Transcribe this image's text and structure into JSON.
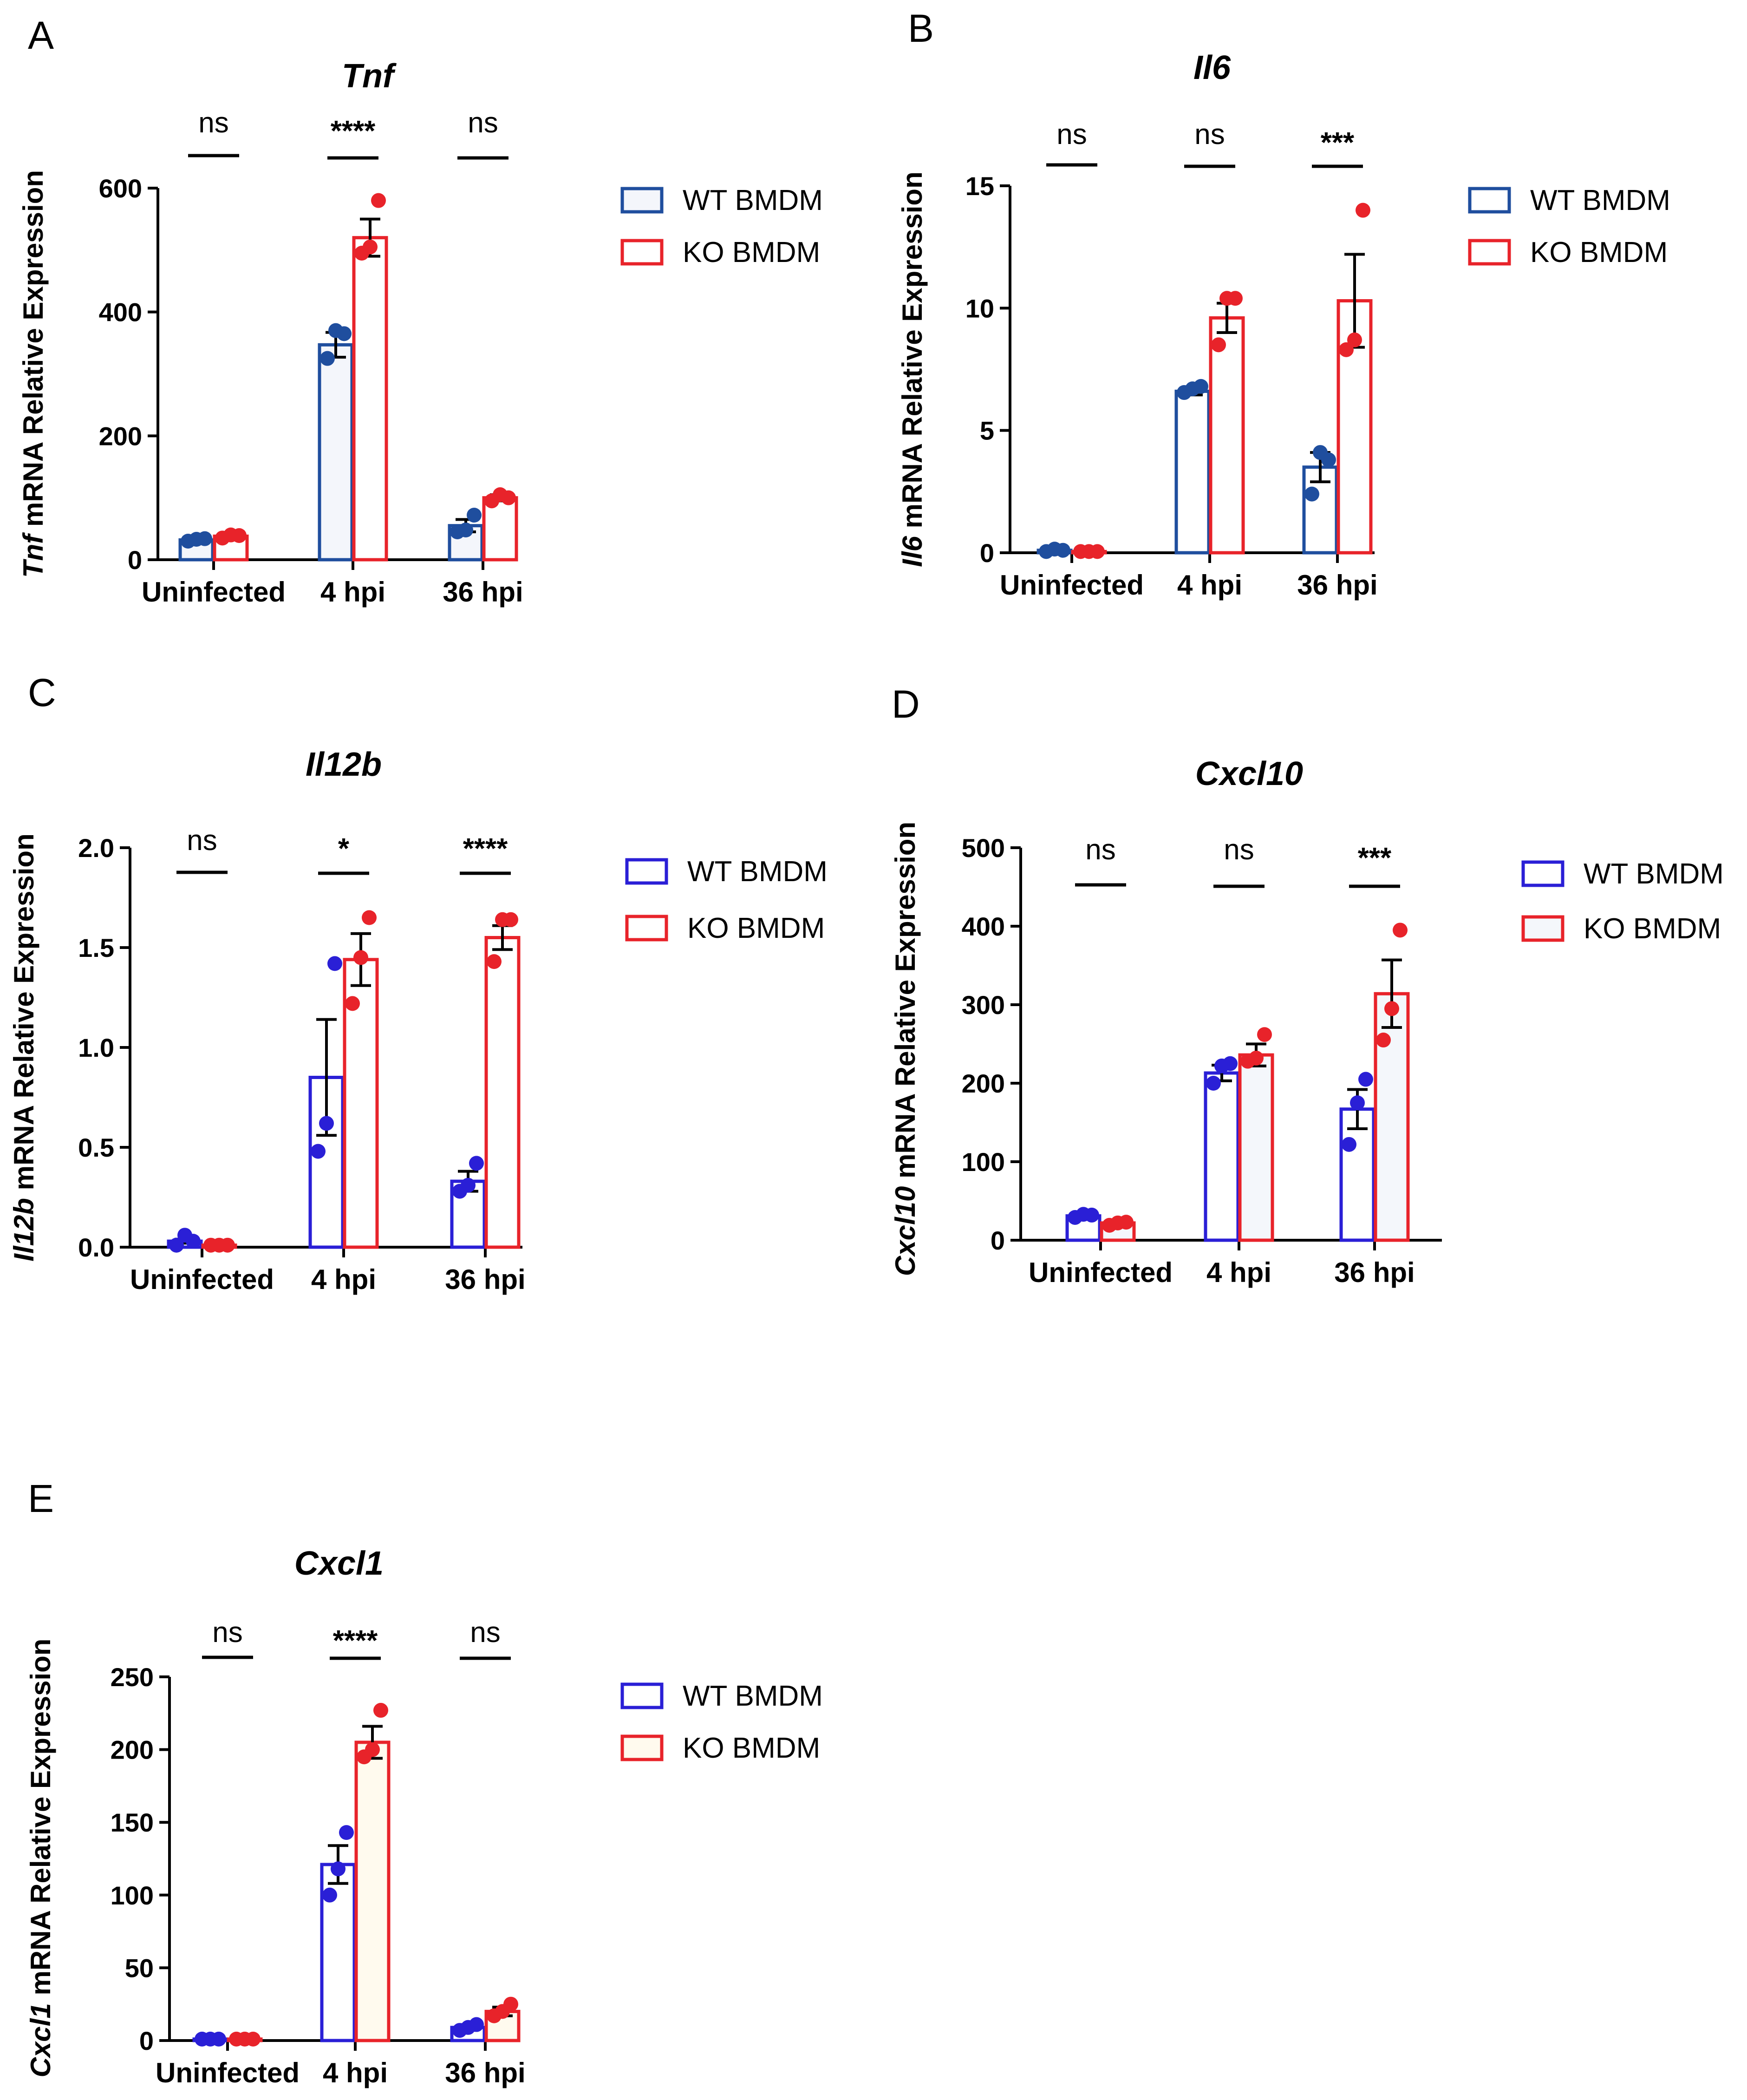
{
  "chart_data": [
    {
      "type": "bar",
      "panel": "A",
      "title": "Tnf",
      "ylabel_gene": "Tnf",
      "ylabel_rest": " mRNA Relative Expression",
      "categories": [
        "Uninfected",
        "4 hpi",
        "36 hpi"
      ],
      "ylim": [
        0,
        600
      ],
      "yticks": [
        0,
        200,
        400,
        600
      ],
      "significance": [
        "ns",
        "****",
        "ns"
      ],
      "colors": {
        "wt": "#1f4e9e",
        "ko": "#e8232a",
        "wt_fill": "#f4f6fb",
        "ko_fill": "#ffffff"
      },
      "series": [
        {
          "name": "WT BMDM",
          "values": [
            32,
            347,
            55
          ],
          "errors": [
            3,
            20,
            10
          ],
          "points": [
            [
              30,
              33,
              34
            ],
            [
              325,
              370,
              365
            ],
            [
              45,
              48,
              72
            ]
          ]
        },
        {
          "name": "KO BMDM",
          "values": [
            38,
            520,
            100
          ],
          "errors": [
            3,
            30,
            5
          ],
          "points": [
            [
              35,
              40,
              39
            ],
            [
              495,
              505,
              580
            ],
            [
              95,
              105,
              100
            ]
          ]
        }
      ]
    },
    {
      "type": "bar",
      "panel": "B",
      "title": "Il6",
      "ylabel_gene": "Il6",
      "ylabel_rest": " mRNA Relative Expression",
      "categories": [
        "Uninfected",
        "4 hpi",
        "36 hpi"
      ],
      "ylim": [
        0,
        15
      ],
      "yticks": [
        0,
        5,
        10,
        15
      ],
      "significance": [
        "ns",
        "ns",
        "***"
      ],
      "colors": {
        "wt": "#1f4e9e",
        "ko": "#e8232a",
        "wt_fill": "#ffffff",
        "ko_fill": "#ffffff"
      },
      "series": [
        {
          "name": "WT BMDM",
          "values": [
            0.1,
            6.6,
            3.5
          ],
          "errors": [
            0.05,
            0.15,
            0.6
          ],
          "points": [
            [
              0.05,
              0.15,
              0.1
            ],
            [
              6.55,
              6.7,
              6.8
            ],
            [
              2.4,
              4.1,
              3.8
            ]
          ]
        },
        {
          "name": "KO BMDM",
          "values": [
            0.05,
            9.6,
            10.3
          ],
          "errors": [
            0.02,
            0.6,
            1.9
          ],
          "points": [
            [
              0.05,
              0.05,
              0.05
            ],
            [
              8.5,
              10.4,
              10.4
            ],
            [
              8.3,
              8.7,
              14.0
            ]
          ]
        }
      ]
    },
    {
      "type": "bar",
      "panel": "C",
      "title": "Il12b",
      "ylabel_gene": "Il12b",
      "ylabel_rest": " mRNA Relative Expression",
      "categories": [
        "Uninfected",
        "4 hpi",
        "36 hpi"
      ],
      "ylim": [
        0,
        2.0
      ],
      "yticks": [
        0.0,
        0.5,
        1.0,
        1.5,
        2.0
      ],
      "significance": [
        "ns",
        "*",
        "****"
      ],
      "colors": {
        "wt": "#2a1fd6",
        "ko": "#e8232a",
        "wt_fill": "#ffffff",
        "ko_fill": "#ffffff"
      },
      "series": [
        {
          "name": "WT BMDM",
          "values": [
            0.03,
            0.85,
            0.33
          ],
          "errors": [
            0.01,
            0.29,
            0.05
          ],
          "points": [
            [
              0.01,
              0.06,
              0.03
            ],
            [
              0.48,
              0.62,
              1.42
            ],
            [
              0.28,
              0.31,
              0.42
            ]
          ]
        },
        {
          "name": "KO BMDM",
          "values": [
            0.01,
            1.44,
            1.55
          ],
          "errors": [
            0.005,
            0.13,
            0.06
          ],
          "points": [
            [
              0.01,
              0.01,
              0.01
            ],
            [
              1.22,
              1.45,
              1.65
            ],
            [
              1.43,
              1.64,
              1.64
            ]
          ]
        }
      ]
    },
    {
      "type": "bar",
      "panel": "D",
      "title": "Cxcl10",
      "ylabel_gene": "Cxcl10",
      "ylabel_rest": " mRNA Relative Expression",
      "categories": [
        "Uninfected",
        "4 hpi",
        "36 hpi"
      ],
      "ylim": [
        0,
        500
      ],
      "yticks": [
        0,
        100,
        200,
        300,
        400,
        500
      ],
      "significance": [
        "ns",
        "ns",
        "***"
      ],
      "colors": {
        "wt": "#2a1fd6",
        "ko": "#e8232a",
        "wt_fill": "#ffffff",
        "ko_fill": "#f4f7fb"
      },
      "series": [
        {
          "name": "WT BMDM",
          "values": [
            31,
            213,
            167
          ],
          "errors": [
            2,
            10,
            25
          ],
          "points": [
            [
              29,
              33,
              32
            ],
            [
              200,
              222,
              225
            ],
            [
              122,
              175,
              205
            ]
          ]
        },
        {
          "name": "KO BMDM",
          "values": [
            22,
            236,
            314
          ],
          "errors": [
            2,
            14,
            43
          ],
          "points": [
            [
              19,
              22,
              23
            ],
            [
              228,
              232,
              262
            ],
            [
              255,
              295,
              395
            ]
          ]
        }
      ]
    },
    {
      "type": "bar",
      "panel": "E",
      "title": "Cxcl1",
      "ylabel_gene": "Cxcl1",
      "ylabel_rest": " mRNA Relative Expression",
      "categories": [
        "Uninfected",
        "4 hpi",
        "36 hpi"
      ],
      "ylim": [
        0,
        250
      ],
      "yticks": [
        0,
        50,
        100,
        150,
        200,
        250
      ],
      "significance": [
        "ns",
        "****",
        "ns"
      ],
      "colors": {
        "wt": "#2a1fd6",
        "ko": "#e8232a",
        "wt_fill": "#ffffff",
        "ko_fill": "#fffaee"
      },
      "series": [
        {
          "name": "WT BMDM",
          "values": [
            1,
            121,
            9
          ],
          "errors": [
            0.5,
            13,
            2
          ],
          "points": [
            [
              1,
              1,
              1
            ],
            [
              100,
              118,
              143
            ],
            [
              7,
              9,
              11
            ]
          ]
        },
        {
          "name": "KO BMDM",
          "values": [
            1,
            205,
            20
          ],
          "errors": [
            0.5,
            11,
            3
          ],
          "points": [
            [
              1,
              1,
              1
            ],
            [
              195,
              200,
              227
            ],
            [
              17,
              20,
              25
            ]
          ]
        }
      ]
    }
  ]
}
